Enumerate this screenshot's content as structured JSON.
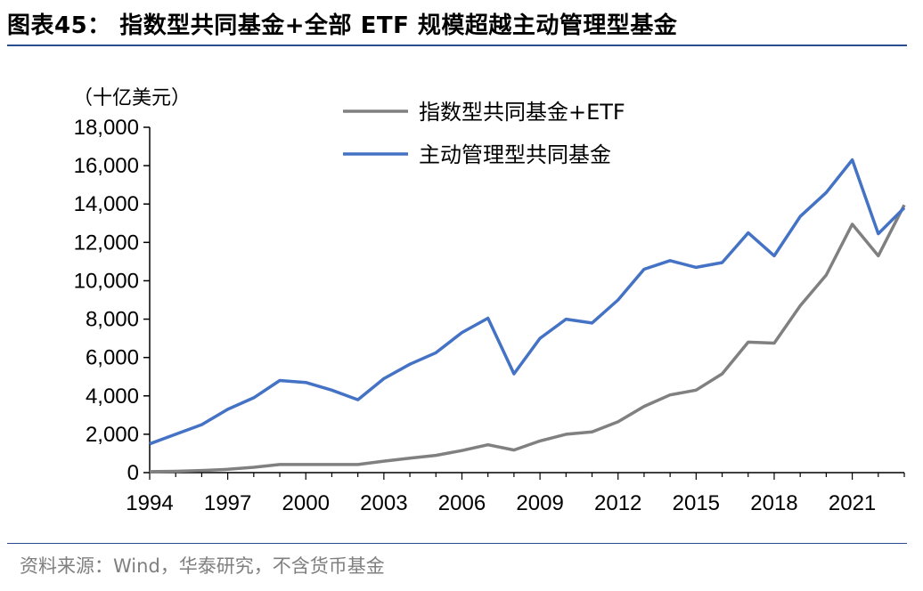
{
  "title": "图表45： 指数型共同基金+全部 ETF 规模超越主动管理型基金",
  "source": "资料来源：Wind，华泰研究，不含货币基金",
  "chart_data": {
    "type": "line",
    "unit_label": "（十亿美元）",
    "x": [
      1994,
      1995,
      1996,
      1997,
      1998,
      1999,
      2000,
      2001,
      2002,
      2003,
      2004,
      2005,
      2006,
      2007,
      2008,
      2009,
      2010,
      2011,
      2012,
      2013,
      2014,
      2015,
      2016,
      2017,
      2018,
      2019,
      2020,
      2021,
      2022,
      2023
    ],
    "x_tick_labels": [
      "1994",
      "1997",
      "2000",
      "2003",
      "2006",
      "2009",
      "2012",
      "2015",
      "2018",
      "2021"
    ],
    "x_tick_values": [
      1994,
      1997,
      2000,
      2003,
      2006,
      2009,
      2012,
      2015,
      2018,
      2021
    ],
    "ylim": [
      0,
      18000
    ],
    "y_tick_values": [
      0,
      2000,
      4000,
      6000,
      8000,
      10000,
      12000,
      14000,
      16000,
      18000
    ],
    "y_tick_labels": [
      "0",
      "2,000",
      "4,000",
      "6,000",
      "8,000",
      "10,000",
      "12,000",
      "14,000",
      "16,000",
      "18,000"
    ],
    "grid": false,
    "legend_position": "top",
    "series": [
      {
        "name": "指数型共同基金+ETF",
        "color": "#808080",
        "values": [
          50,
          70,
          110,
          170,
          280,
          420,
          420,
          420,
          420,
          600,
          750,
          900,
          1150,
          1450,
          1180,
          1650,
          2000,
          2120,
          2650,
          3450,
          4050,
          4300,
          5150,
          6800,
          6750,
          8700,
          10300,
          12950,
          11300,
          13950
        ]
      },
      {
        "name": "主动管理型共同基金",
        "color": "#4472c4",
        "values": [
          1500,
          2000,
          2500,
          3300,
          3900,
          4800,
          4700,
          4300,
          3800,
          4900,
          5650,
          6250,
          7300,
          8050,
          5150,
          7000,
          8000,
          7800,
          9000,
          10600,
          11050,
          10700,
          10950,
          12500,
          11300,
          13350,
          14600,
          16300,
          12450,
          13800
        ]
      }
    ]
  }
}
